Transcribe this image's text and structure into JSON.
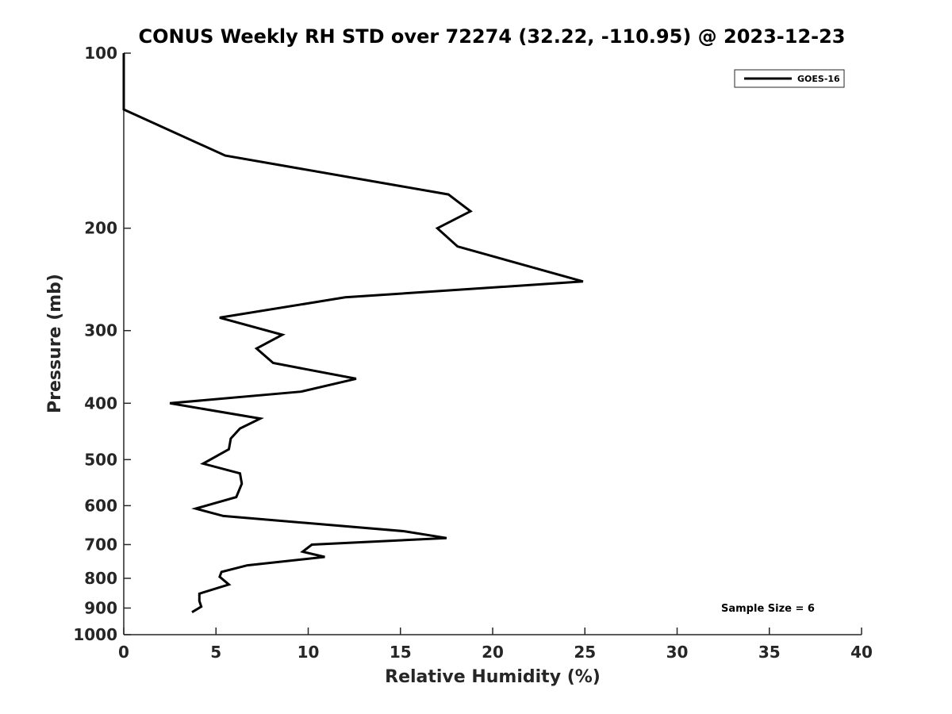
{
  "chart_data": {
    "type": "line",
    "title": "CONUS Weekly RH STD over 72274 (32.22, -110.95) @ 2023-12-23",
    "xlabel": "Relative Humidity (%)",
    "ylabel": "Pressure (mb)",
    "xlim": [
      0,
      40
    ],
    "ylim": [
      100,
      1000
    ],
    "yscale": "log",
    "yreversed": true,
    "grid": false,
    "legend_position": "top-right",
    "xticks": [
      0,
      5,
      10,
      15,
      20,
      25,
      30,
      35,
      40
    ],
    "xtick_labels": [
      "0",
      "5",
      "10",
      "15",
      "20",
      "25",
      "30",
      "35",
      "40"
    ],
    "yticks": [
      100,
      200,
      300,
      400,
      500,
      600,
      700,
      800,
      900,
      1000
    ],
    "ytick_labels": [
      "100",
      "200",
      "300",
      "400",
      "500",
      "600",
      "700",
      "800",
      "900",
      "1000"
    ],
    "series": [
      {
        "name": "GOES-16",
        "color": "#000000",
        "points": [
          {
            "x": 0.0,
            "y": 100
          },
          {
            "x": 0.0,
            "y": 125
          },
          {
            "x": 5.5,
            "y": 150
          },
          {
            "x": 17.6,
            "y": 175
          },
          {
            "x": 18.8,
            "y": 187
          },
          {
            "x": 17.0,
            "y": 200
          },
          {
            "x": 18.1,
            "y": 215
          },
          {
            "x": 24.9,
            "y": 247
          },
          {
            "x": 12.0,
            "y": 263
          },
          {
            "x": 5.2,
            "y": 285
          },
          {
            "x": 8.6,
            "y": 305
          },
          {
            "x": 7.2,
            "y": 322
          },
          {
            "x": 8.1,
            "y": 341
          },
          {
            "x": 12.6,
            "y": 363
          },
          {
            "x": 9.6,
            "y": 382
          },
          {
            "x": 2.5,
            "y": 400
          },
          {
            "x": 7.4,
            "y": 425
          },
          {
            "x": 6.3,
            "y": 442
          },
          {
            "x": 5.8,
            "y": 460
          },
          {
            "x": 5.7,
            "y": 480
          },
          {
            "x": 4.3,
            "y": 508
          },
          {
            "x": 6.3,
            "y": 528
          },
          {
            "x": 6.4,
            "y": 550
          },
          {
            "x": 6.1,
            "y": 580
          },
          {
            "x": 3.9,
            "y": 607
          },
          {
            "x": 5.4,
            "y": 625
          },
          {
            "x": 15.2,
            "y": 664
          },
          {
            "x": 17.5,
            "y": 682
          },
          {
            "x": 10.2,
            "y": 700
          },
          {
            "x": 9.7,
            "y": 720
          },
          {
            "x": 10.9,
            "y": 735
          },
          {
            "x": 6.7,
            "y": 760
          },
          {
            "x": 5.3,
            "y": 780
          },
          {
            "x": 5.2,
            "y": 795
          },
          {
            "x": 5.7,
            "y": 820
          },
          {
            "x": 4.1,
            "y": 850
          },
          {
            "x": 4.1,
            "y": 875
          },
          {
            "x": 4.2,
            "y": 895
          },
          {
            "x": 3.7,
            "y": 915
          }
        ]
      }
    ],
    "annotations": [
      {
        "text": "Sample Size = 6",
        "position": "bottom-right"
      }
    ]
  }
}
